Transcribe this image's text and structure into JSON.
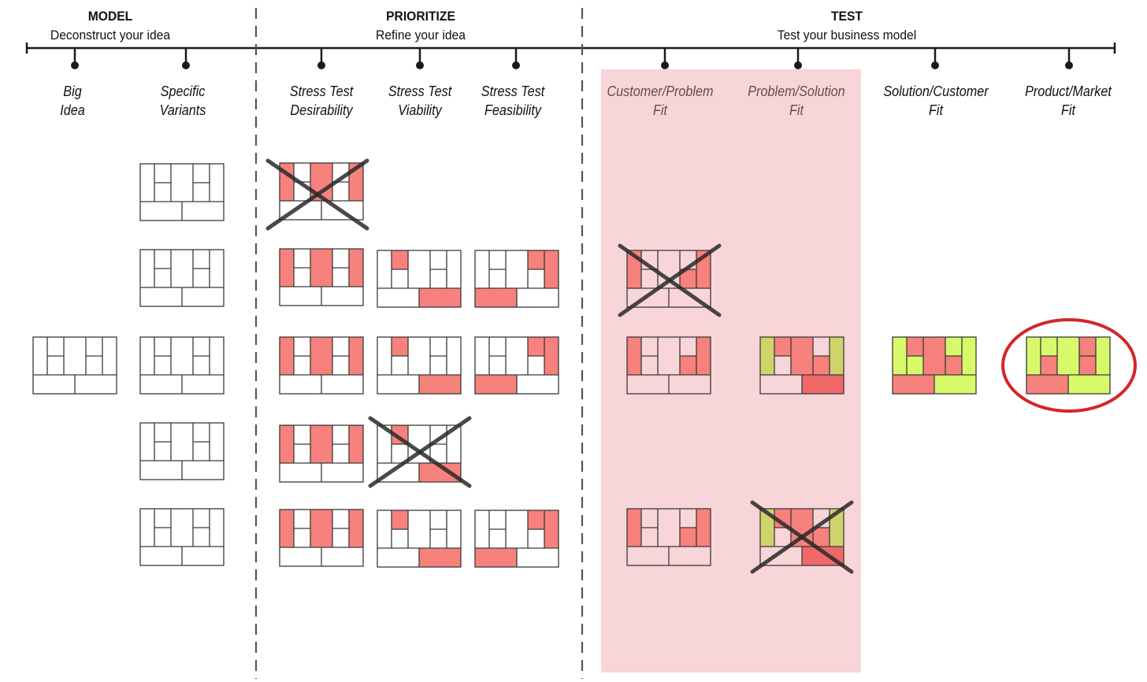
{
  "phases": [
    {
      "title": "MODEL",
      "subtitle": "Deconstruct your idea"
    },
    {
      "title": "PRIORITIZE",
      "subtitle": "Refine your idea"
    },
    {
      "title": "TEST",
      "subtitle": "Test your business model"
    }
  ],
  "steps": [
    {
      "line1": "Big",
      "line2": "Idea"
    },
    {
      "line1": "Specific",
      "line2": "Variants"
    },
    {
      "line1": "Stress Test",
      "line2": "Desirability"
    },
    {
      "line1": "Stress Test",
      "line2": "Viability"
    },
    {
      "line1": "Stress Test",
      "line2": "Feasibility"
    },
    {
      "line1": "Customer/Problem",
      "line2": "Fit"
    },
    {
      "line1": "Problem/Solution",
      "line2": "Fit"
    },
    {
      "line1": "Solution/Customer",
      "line2": "Fit"
    },
    {
      "line1": "Product/Market",
      "line2": "Fit"
    }
  ],
  "colors": {
    "risk_red": "#f7817c",
    "risk_red_dark": "#f06868",
    "pale_pink": "#f8d5d8",
    "olive": "#cfd36a",
    "validated_green": "#d8f96a",
    "crossed_out": "#2a2a2a",
    "highlight_circle": "#d42626",
    "timeline": "#1a1a1a"
  },
  "icons": {
    "crossed_out": "cross-mark-icon",
    "highlight": "highlight-circle-icon"
  }
}
